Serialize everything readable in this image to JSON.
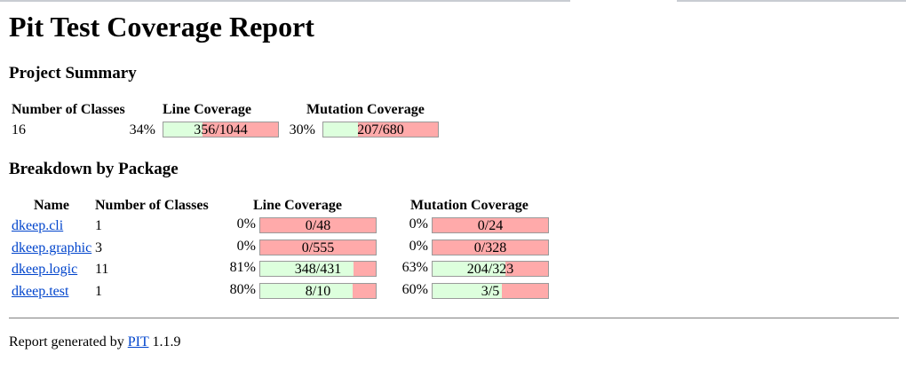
{
  "title": "Pit Test Coverage Report",
  "project_summary": {
    "heading": "Project Summary",
    "headers": {
      "classes": "Number of Classes",
      "line": "Line Coverage",
      "mutation": "Mutation Coverage"
    },
    "classes": "16",
    "line_pct": "34%",
    "line_ratio": "356/1044",
    "line_fraction": 0.34,
    "mutation_pct": "30%",
    "mutation_ratio": "207/680",
    "mutation_fraction": 0.3
  },
  "breakdown": {
    "heading": "Breakdown by Package",
    "headers": {
      "name": "Name",
      "classes": "Number of Classes",
      "line": "Line Coverage",
      "mutation": "Mutation Coverage"
    },
    "rows": [
      {
        "name": "dkeep.cli",
        "classes": "1",
        "line_pct": "0%",
        "line_ratio": "0/48",
        "line_fraction": 0.0,
        "mutation_pct": "0%",
        "mutation_ratio": "0/24",
        "mutation_fraction": 0.0
      },
      {
        "name": "dkeep.graphic",
        "classes": "3",
        "line_pct": "0%",
        "line_ratio": "0/555",
        "line_fraction": 0.0,
        "mutation_pct": "0%",
        "mutation_ratio": "0/328",
        "mutation_fraction": 0.0
      },
      {
        "name": "dkeep.logic",
        "classes": "11",
        "line_pct": "81%",
        "line_ratio": "348/431",
        "line_fraction": 0.81,
        "mutation_pct": "63%",
        "mutation_ratio": "204/323",
        "mutation_fraction": 0.63
      },
      {
        "name": "dkeep.test",
        "classes": "1",
        "line_pct": "80%",
        "line_ratio": "8/10",
        "line_fraction": 0.8,
        "mutation_pct": "60%",
        "mutation_ratio": "3/5",
        "mutation_fraction": 0.6
      }
    ]
  },
  "footer": {
    "prefix": "Report generated by",
    "link": "PIT",
    "version": "1.1.9"
  },
  "colors": {
    "covered": "#ddffdd",
    "uncovered": "#ffaaaa",
    "link": "#0044cc"
  }
}
